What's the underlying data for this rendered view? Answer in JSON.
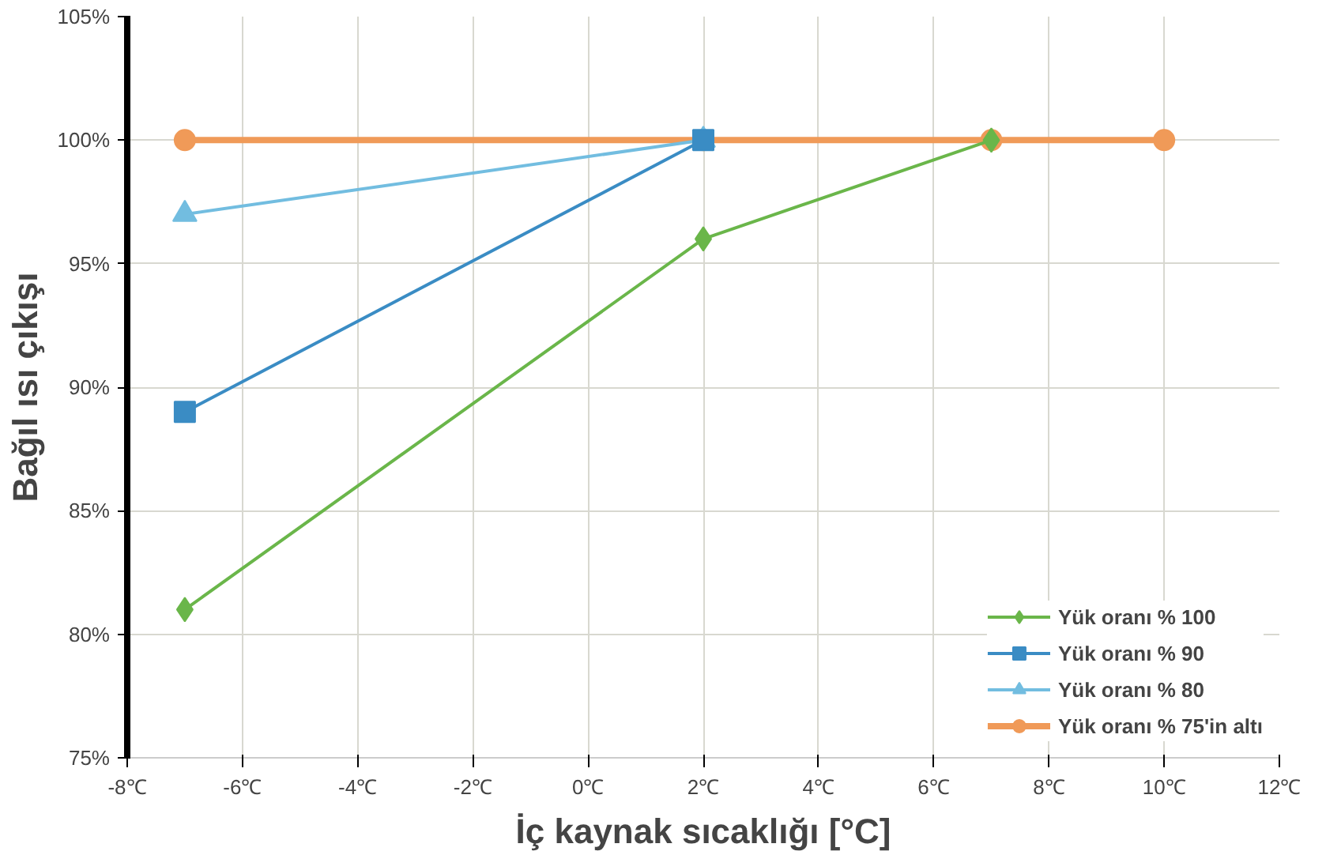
{
  "chart_data": {
    "type": "line",
    "xlabel": "İç kaynak sıcaklığı [°C]",
    "ylabel": "Bağıl ısı çıkışı",
    "xlim": [
      -8,
      12
    ],
    "ylim": [
      75,
      105
    ],
    "xticks": [
      {
        "value": -8,
        "label": "-8℃"
      },
      {
        "value": -6,
        "label": "-6℃"
      },
      {
        "value": -4,
        "label": "-4℃"
      },
      {
        "value": -2,
        "label": "-2℃"
      },
      {
        "value": 0,
        "label": "0℃"
      },
      {
        "value": 2,
        "label": "2℃"
      },
      {
        "value": 4,
        "label": "4℃"
      },
      {
        "value": 6,
        "label": "6℃"
      },
      {
        "value": 8,
        "label": "8℃"
      },
      {
        "value": 10,
        "label": "10℃"
      },
      {
        "value": 12,
        "label": "12℃"
      }
    ],
    "yticks": [
      {
        "value": 75,
        "label": "75%"
      },
      {
        "value": 80,
        "label": "80%"
      },
      {
        "value": 85,
        "label": "85%"
      },
      {
        "value": 90,
        "label": "90%"
      },
      {
        "value": 95,
        "label": "95%"
      },
      {
        "value": 100,
        "label": "100%"
      },
      {
        "value": 105,
        "label": "105%"
      }
    ],
    "grid": true,
    "legend": "bottom right",
    "series": [
      {
        "name": "Yük oranı % 100",
        "color": "#6ab64a",
        "marker": "diamond",
        "x": [
          -7,
          2,
          7
        ],
        "values": [
          81,
          96,
          100
        ]
      },
      {
        "name": "Yük oranı % 90",
        "color": "#3a8cc4",
        "marker": "square",
        "x": [
          -7,
          2
        ],
        "values": [
          89,
          100
        ]
      },
      {
        "name": "Yük oranı % 80",
        "color": "#72bde0",
        "marker": "triangle",
        "x": [
          -7,
          2
        ],
        "values": [
          97,
          100
        ]
      },
      {
        "name": "Yük oranı % 75'in altı",
        "color": "#f09a58",
        "marker": "circle",
        "x": [
          -7,
          2,
          7,
          10
        ],
        "values": [
          100,
          100,
          100,
          100
        ]
      }
    ]
  }
}
